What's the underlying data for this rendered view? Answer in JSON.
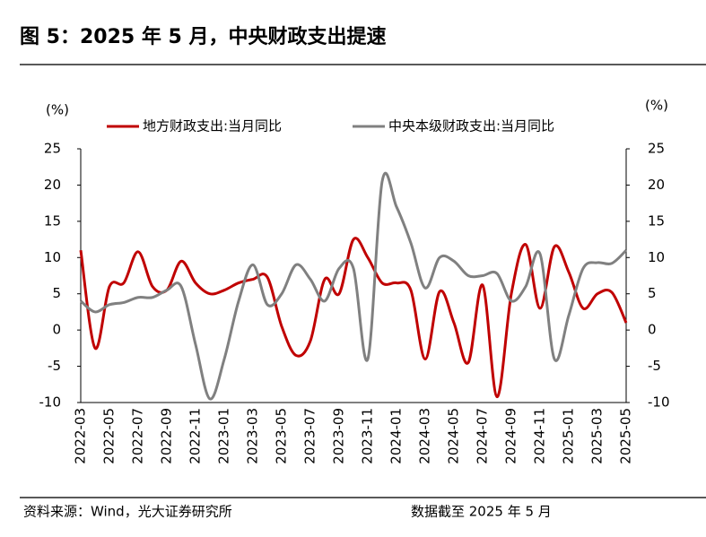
{
  "chart_data": {
    "type": "line",
    "title": "图 5：2025 年 5 月，中央财政支出提速",
    "y_label": "(%)",
    "y2_label": "(%)",
    "source": "资料来源：Wind，光大证券研究所",
    "note": "数据截至 2025 年 5 月",
    "categories": [
      "2022-03",
      null,
      "2022-05",
      null,
      "2022-07",
      null,
      "2022-09",
      null,
      "2022-11",
      null,
      "2023-01",
      null,
      "2023-03",
      null,
      "2023-05",
      null,
      "2023-07",
      null,
      "2023-09",
      null,
      "2023-11",
      null,
      "2024-01",
      null,
      "2024-03",
      null,
      "2024-05",
      null,
      "2024-07",
      null,
      "2024-09",
      null,
      "2024-11",
      null,
      "2025-01",
      null,
      "2025-03",
      null,
      "2025-05"
    ],
    "series": [
      {
        "name": "地方财政支出:当月同比",
        "color": "#c00000",
        "values": [
          11,
          -2.5,
          6,
          6.5,
          10.8,
          6,
          5.5,
          9.5,
          6.5,
          5,
          5.5,
          6.5,
          7,
          7.3,
          0.5,
          -3.5,
          -1.5,
          7,
          5,
          12.5,
          10,
          6.5,
          6.5,
          5.5,
          -4,
          5.3,
          1,
          -4.5,
          6.2,
          -9.2,
          5,
          11.8,
          3,
          11.5,
          8,
          3,
          5,
          5.2,
          1
        ]
      },
      {
        "name": "中央本级财政支出:当月同比",
        "color": "#808080",
        "axis": "y2",
        "values": [
          4,
          2.5,
          3.5,
          3.8,
          4.5,
          4.5,
          5.5,
          6,
          -2,
          -9.5,
          -4,
          4,
          9,
          3.5,
          5,
          9,
          7,
          4,
          8.5,
          8.5,
          -4,
          20.5,
          17,
          12,
          5.8,
          10,
          9.5,
          7.5,
          7.5,
          7.8,
          4,
          6,
          10.5,
          -4,
          2,
          8.5,
          9.3,
          9.2,
          11
        ]
      }
    ],
    "ylim": [
      -10,
      25
    ],
    "yticks": [
      -10,
      -5,
      0,
      5,
      10,
      15,
      20,
      25
    ],
    "y2lim": [
      -10,
      25
    ],
    "y2ticks": [
      -10,
      -5,
      0,
      5,
      10,
      15,
      20,
      25
    ]
  }
}
